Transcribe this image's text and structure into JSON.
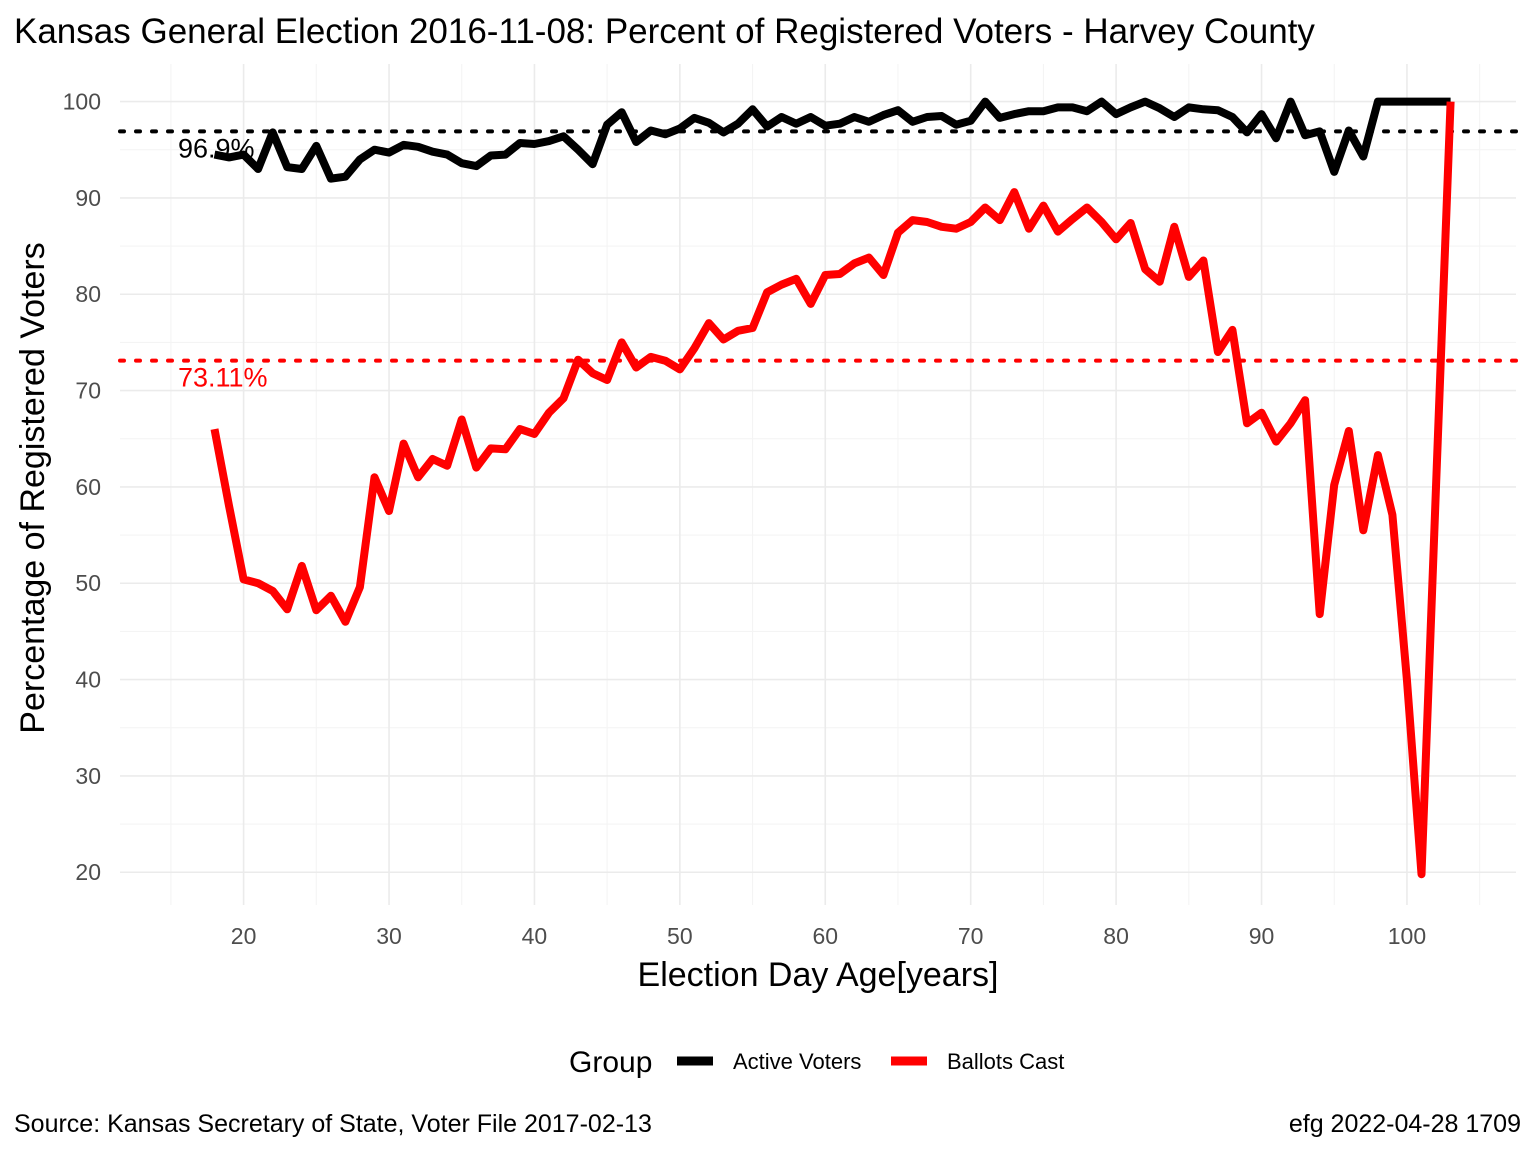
{
  "chart_data": {
    "type": "line",
    "title": "Kansas General Election 2016-11-08:  Percent of Registered Voters - Harvey County",
    "xlabel": "Election Day Age[years]",
    "ylabel": "Percentage of Registered Voters",
    "xlim": [
      11.5,
      107.5
    ],
    "ylim": [
      16.6,
      103.9
    ],
    "x_ticks": [
      20,
      30,
      40,
      50,
      60,
      70,
      80,
      90,
      100
    ],
    "y_ticks": [
      20,
      30,
      40,
      50,
      60,
      70,
      80,
      90,
      100
    ],
    "grid": true,
    "legend": {
      "title": "Group",
      "position": "bottom"
    },
    "caption_left": "Source:  Kansas Secretary of State, Voter File  2017-02-13",
    "caption_right": "efg 2022-04-28 1709",
    "series": [
      {
        "name": "Active Voters",
        "color": "#000000",
        "x": [
          18,
          19,
          20,
          21,
          22,
          23,
          24,
          25,
          26,
          27,
          28,
          29,
          30,
          31,
          32,
          33,
          34,
          35,
          36,
          37,
          38,
          39,
          40,
          41,
          42,
          43,
          44,
          45,
          46,
          47,
          48,
          49,
          50,
          51,
          52,
          53,
          54,
          55,
          56,
          57,
          58,
          59,
          60,
          61,
          62,
          63,
          64,
          65,
          66,
          67,
          68,
          69,
          70,
          71,
          72,
          73,
          74,
          75,
          76,
          77,
          78,
          79,
          80,
          81,
          82,
          83,
          84,
          85,
          86,
          87,
          88,
          89,
          90,
          91,
          92,
          93,
          94,
          95,
          96,
          97,
          98,
          99,
          100,
          101,
          102,
          103
        ],
        "y": [
          94.5,
          94.2,
          94.5,
          93.0,
          96.8,
          93.2,
          93.0,
          95.4,
          92.0,
          92.2,
          94.0,
          95.0,
          94.7,
          95.5,
          95.3,
          94.8,
          94.5,
          93.6,
          93.3,
          94.4,
          94.5,
          95.7,
          95.6,
          95.9,
          96.4,
          95.0,
          93.5,
          97.6,
          98.9,
          95.8,
          97.0,
          96.6,
          97.2,
          98.3,
          97.8,
          96.8,
          97.7,
          99.2,
          97.4,
          98.4,
          97.7,
          98.4,
          97.5,
          97.7,
          98.4,
          97.9,
          98.6,
          99.1,
          97.9,
          98.4,
          98.5,
          97.6,
          98.0,
          100.0,
          98.3,
          98.7,
          99.0,
          99.0,
          99.4,
          99.4,
          99.0,
          100.0,
          98.7,
          99.4,
          100.0,
          99.3,
          98.4,
          99.4,
          99.2,
          99.1,
          98.4,
          96.8,
          98.7,
          96.2,
          100.0,
          96.5,
          96.9,
          92.7,
          97.0,
          94.3,
          100.0,
          100.0,
          100.0,
          100.0,
          100.0,
          100.0
        ]
      },
      {
        "name": "Ballots Cast",
        "color": "#ff0000",
        "x": [
          18,
          19,
          20,
          21,
          22,
          23,
          24,
          25,
          26,
          27,
          28,
          29,
          30,
          31,
          32,
          33,
          34,
          35,
          36,
          37,
          38,
          39,
          40,
          41,
          42,
          43,
          44,
          45,
          46,
          47,
          48,
          49,
          50,
          51,
          52,
          53,
          54,
          55,
          56,
          57,
          58,
          59,
          60,
          61,
          62,
          63,
          64,
          65,
          66,
          67,
          68,
          69,
          70,
          71,
          72,
          73,
          74,
          75,
          76,
          77,
          78,
          79,
          80,
          81,
          82,
          83,
          84,
          85,
          86,
          87,
          88,
          89,
          90,
          91,
          92,
          93,
          94,
          95,
          96,
          97,
          98,
          99,
          100,
          101,
          102,
          103
        ],
        "y": [
          66.0,
          58.0,
          50.4,
          50.0,
          49.2,
          47.3,
          51.8,
          47.2,
          48.7,
          46.0,
          49.6,
          61.0,
          57.5,
          64.5,
          61.0,
          62.9,
          62.2,
          67.0,
          62.0,
          64.0,
          63.9,
          66.0,
          65.5,
          67.7,
          69.2,
          73.2,
          71.8,
          71.1,
          75.0,
          72.4,
          73.5,
          73.1,
          72.2,
          74.4,
          77.0,
          75.3,
          76.2,
          76.5,
          80.2,
          81.0,
          81.6,
          79.0,
          82.0,
          82.1,
          83.2,
          83.8,
          82.0,
          86.4,
          87.7,
          87.5,
          87.0,
          86.8,
          87.5,
          89.0,
          87.7,
          90.6,
          86.8,
          89.2,
          86.5,
          87.8,
          89.0,
          87.5,
          85.7,
          87.4,
          82.6,
          81.3,
          87.0,
          81.8,
          83.5,
          74.0,
          76.3,
          66.6,
          67.7,
          64.7,
          66.6,
          69.0,
          46.8,
          60.2,
          65.8,
          55.5,
          63.3,
          57.1,
          40.0,
          19.8,
          60.0,
          100.0
        ]
      }
    ],
    "reference_lines": [
      {
        "value": 96.9,
        "label": "96.9%",
        "color": "#000000"
      },
      {
        "value": 73.11,
        "label": "73.11%",
        "color": "#ff0000"
      }
    ]
  }
}
